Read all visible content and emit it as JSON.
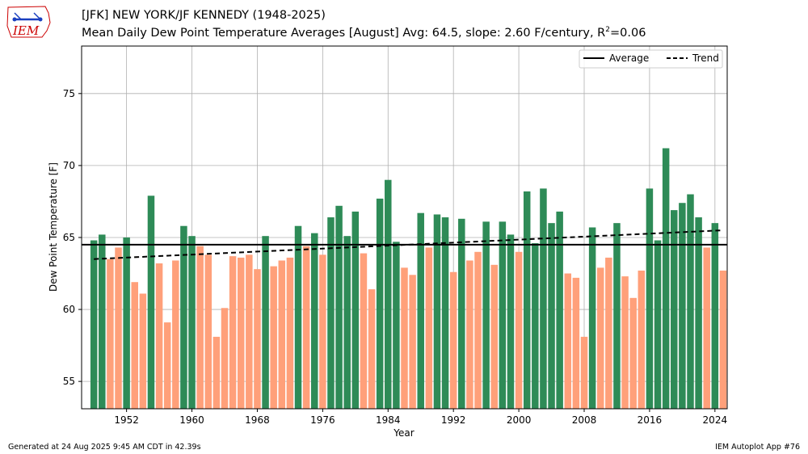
{
  "title": "[JFK] NEW YORK/JF KENNEDY (1948-2025)",
  "subtitle_main": "Mean Daily Dew Point Temperature Averages [August]  Avg: 64.5, slope: 2.60 F/century, R",
  "subtitle_sup": "2",
  "subtitle_tail": "=0.06",
  "footer_left": "Generated at 24 Aug 2025 9:45 AM CDT in 42.39s",
  "footer_right": "IEM Autoplot App #76",
  "logo_text": "IEM",
  "colors": {
    "above": "#2e8b57",
    "below": "#ffa07a",
    "frame": "#000000",
    "grid": "#b0b0b0"
  },
  "chart_data": {
    "type": "bar",
    "xlabel": "Year",
    "ylabel": "Dew Point Temperature [F]",
    "xlim": [
      1946.5,
      2025.5
    ],
    "ylim": [
      53.1,
      78.3
    ],
    "xticks": [
      1952,
      1960,
      1968,
      1976,
      1984,
      1992,
      2000,
      2008,
      2016,
      2024
    ],
    "yticks": [
      55,
      60,
      65,
      70,
      75
    ],
    "grid": true,
    "legend_position": "top-right",
    "legend": [
      "Average",
      "Trend"
    ],
    "average": 64.5,
    "trend": {
      "x": [
        1948,
        2025
      ],
      "y": [
        63.5,
        65.5
      ]
    },
    "years": [
      1948,
      1949,
      1950,
      1951,
      1952,
      1953,
      1954,
      1955,
      1956,
      1957,
      1958,
      1959,
      1960,
      1961,
      1962,
      1963,
      1964,
      1965,
      1966,
      1967,
      1968,
      1969,
      1970,
      1971,
      1972,
      1973,
      1974,
      1975,
      1976,
      1977,
      1978,
      1979,
      1980,
      1981,
      1982,
      1983,
      1984,
      1985,
      1986,
      1987,
      1988,
      1989,
      1990,
      1991,
      1992,
      1993,
      1994,
      1995,
      1996,
      1997,
      1998,
      1999,
      2000,
      2001,
      2002,
      2003,
      2004,
      2005,
      2006,
      2007,
      2008,
      2009,
      2010,
      2011,
      2012,
      2013,
      2014,
      2015,
      2016,
      2017,
      2018,
      2019,
      2020,
      2021,
      2022,
      2023,
      2024,
      2025
    ],
    "values": [
      64.8,
      65.2,
      63.5,
      64.3,
      65.0,
      61.9,
      61.1,
      67.9,
      63.2,
      59.1,
      63.4,
      65.8,
      65.1,
      64.4,
      63.8,
      58.1,
      60.1,
      63.7,
      63.6,
      63.8,
      62.8,
      65.1,
      63.0,
      63.4,
      63.6,
      65.8,
      64.4,
      65.3,
      63.8,
      66.4,
      67.2,
      65.1,
      66.8,
      63.9,
      61.4,
      67.7,
      69.0,
      64.7,
      62.9,
      62.4,
      66.7,
      64.3,
      66.6,
      66.4,
      62.6,
      66.3,
      63.4,
      64.0,
      66.1,
      63.1,
      66.1,
      65.2,
      64.0,
      68.2,
      64.6,
      68.4,
      66.0,
      66.8,
      62.5,
      62.2,
      58.1,
      65.7,
      62.9,
      63.6,
      66.0,
      62.3,
      60.8,
      62.7,
      68.4,
      64.8,
      71.2,
      66.9,
      67.4,
      68.0,
      66.4,
      64.3,
      66.0,
      62.7
    ]
  }
}
